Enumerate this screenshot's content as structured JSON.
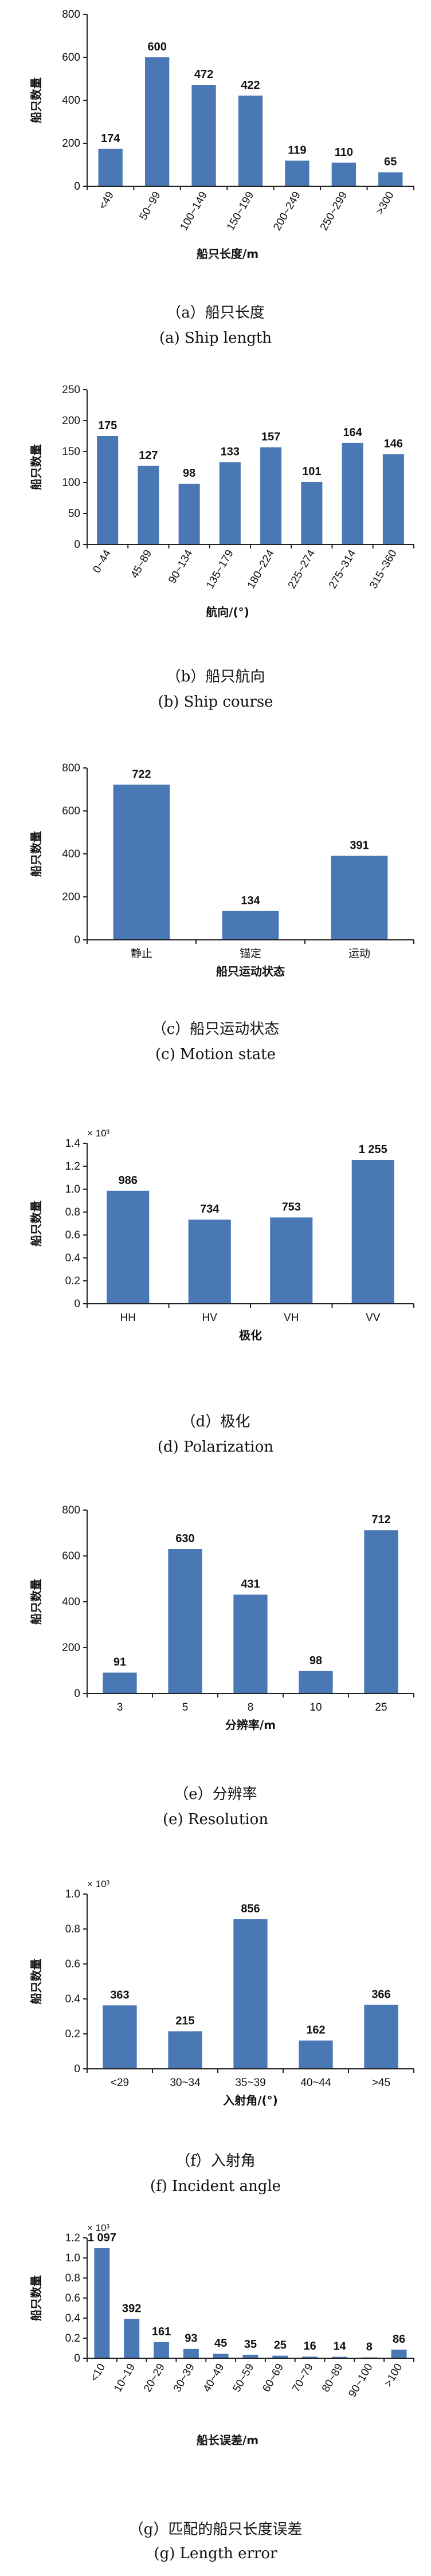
{
  "chart_data": [
    {
      "type": "bar",
      "categories": [
        "<49",
        "50~99",
        "100~149",
        "150~199",
        "200~249",
        "250~299",
        ">300"
      ],
      "values": [
        174,
        600,
        472,
        422,
        119,
        110,
        65
      ],
      "value_labels": [
        "174",
        "600",
        "472",
        "422",
        "119",
        "110",
        "65"
      ],
      "xlabel": "船只长度/m",
      "ylabel": "船只数量",
      "ylim": [
        0,
        800
      ],
      "yticks": [
        0,
        200,
        400,
        600,
        800
      ],
      "ytick_labels": [
        "0",
        "200",
        "400",
        "600",
        "800"
      ],
      "y_multiplier": "",
      "rotate_x": true,
      "grid": false,
      "caption_cn": "（a）船只长度",
      "caption_en": "(a) Ship length"
    },
    {
      "type": "bar",
      "categories": [
        "0~44",
        "45~89",
        "90~134",
        "135~179",
        "180~224",
        "225~274",
        "275~314",
        "315~360"
      ],
      "values": [
        175,
        127,
        98,
        133,
        157,
        101,
        164,
        146
      ],
      "value_labels": [
        "175",
        "127",
        "98",
        "133",
        "157",
        "101",
        "164",
        "146"
      ],
      "xlabel": "航向/(°)",
      "ylabel": "船只数量",
      "ylim": [
        0,
        250
      ],
      "yticks": [
        0,
        50,
        100,
        150,
        200,
        250
      ],
      "ytick_labels": [
        "0",
        "50",
        "100",
        "150",
        "200",
        "250"
      ],
      "y_multiplier": "",
      "rotate_x": true,
      "grid": false,
      "caption_cn": "（b）船只航向",
      "caption_en": "(b) Ship course"
    },
    {
      "type": "bar",
      "categories": [
        "静止",
        "锚定",
        "运动"
      ],
      "values": [
        722,
        134,
        391
      ],
      "value_labels": [
        "722",
        "134",
        "391"
      ],
      "xlabel": "船只运动状态",
      "ylabel": "船只数量",
      "ylim": [
        0,
        800
      ],
      "yticks": [
        0,
        200,
        400,
        600,
        800
      ],
      "ytick_labels": [
        "0",
        "200",
        "400",
        "600",
        "800"
      ],
      "y_multiplier": "",
      "rotate_x": false,
      "grid": false,
      "caption_cn": "（c）船只运动状态",
      "caption_en": "(c) Motion state"
    },
    {
      "type": "bar",
      "categories": [
        "HH",
        "HV",
        "VH",
        "VV"
      ],
      "values": [
        986,
        734,
        753,
        1255
      ],
      "value_labels": [
        "986",
        "734",
        "753",
        "1 255"
      ],
      "xlabel": "极化",
      "ylabel": "船只数量",
      "ylim": [
        0,
        1400
      ],
      "yticks": [
        0,
        200,
        400,
        600,
        800,
        1000,
        1200,
        1400
      ],
      "ytick_labels": [
        "0",
        "0.2",
        "0.4",
        "0.6",
        "0.8",
        "1.0",
        "1.2",
        "1.4"
      ],
      "y_multiplier": "× 10³",
      "rotate_x": false,
      "grid": false,
      "caption_cn": "（d）极化",
      "caption_en": "(d) Polarization"
    },
    {
      "type": "bar",
      "categories": [
        "3",
        "5",
        "8",
        "10",
        "25"
      ],
      "values": [
        91,
        630,
        431,
        98,
        712
      ],
      "value_labels": [
        "91",
        "630",
        "431",
        "98",
        "712"
      ],
      "xlabel": "分辨率/m",
      "ylabel": "船只数量",
      "ylim": [
        0,
        800
      ],
      "yticks": [
        0,
        200,
        400,
        600,
        800
      ],
      "ytick_labels": [
        "0",
        "200",
        "400",
        "600",
        "800"
      ],
      "y_multiplier": "",
      "rotate_x": false,
      "grid": false,
      "caption_cn": "（e）分辨率",
      "caption_en": "(e) Resolution"
    },
    {
      "type": "bar",
      "categories": [
        "<29",
        "30~34",
        "35~39",
        "40~44",
        ">45"
      ],
      "values": [
        363,
        215,
        856,
        162,
        366
      ],
      "value_labels": [
        "363",
        "215",
        "856",
        "162",
        "366"
      ],
      "xlabel": "入射角/(°)",
      "ylabel": "船只数量",
      "ylim": [
        0,
        1000
      ],
      "yticks": [
        0,
        200,
        400,
        600,
        800,
        1000
      ],
      "ytick_labels": [
        "0",
        "0.2",
        "0.4",
        "0.6",
        "0.8",
        "1.0"
      ],
      "y_multiplier": "× 10³",
      "rotate_x": false,
      "grid": false,
      "caption_cn": "（f）入射角",
      "caption_en": "(f) Incident angle"
    },
    {
      "type": "bar",
      "categories": [
        "<10",
        "10~19",
        "20~29",
        "30~39",
        "40~49",
        "50~59",
        "60~69",
        "70~79",
        "80~89",
        "90~100",
        ">100"
      ],
      "values": [
        1097,
        392,
        161,
        93,
        45,
        35,
        25,
        16,
        14,
        8,
        86
      ],
      "value_labels": [
        "1 097",
        "392",
        "161",
        "93",
        "45",
        "35",
        "25",
        "16",
        "14",
        "8",
        "86"
      ],
      "xlabel": "船长误差/m",
      "ylabel": "船只数量",
      "ylim": [
        0,
        1200
      ],
      "yticks": [
        0,
        200,
        400,
        600,
        800,
        1000,
        1200
      ],
      "ytick_labels": [
        "0",
        "0.2",
        "0.4",
        "0.6",
        "0.8",
        "1.0",
        "1.2"
      ],
      "y_multiplier": "× 10³",
      "rotate_x": true,
      "grid": false,
      "caption_cn": "（g）匹配的船只长度误差",
      "caption_en": "(g) Length error"
    }
  ]
}
